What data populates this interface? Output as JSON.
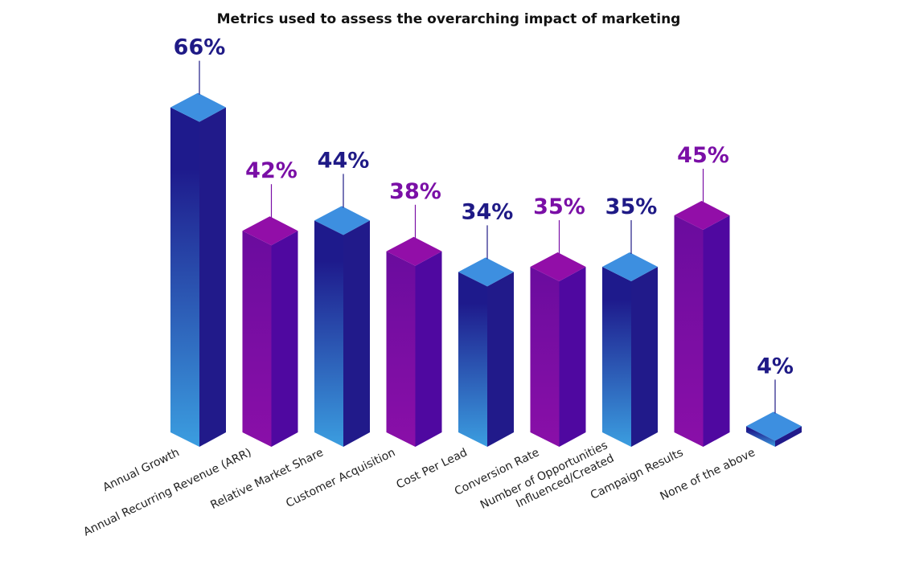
{
  "chart_data": {
    "type": "bar",
    "title": "Metrics used to assess the overarching impact of marketing",
    "xlabel": "",
    "ylabel": "",
    "ylim": [
      0,
      66
    ],
    "grid": false,
    "legend": "none",
    "value_suffix": "%",
    "categories": [
      "Annual Growth",
      "Annual Recurring Revenue (ARR)",
      "Relative Market Share",
      "Customer Acquisition",
      "Cost Per Lead",
      "Conversion Rate",
      [
        "Number of Opportunities",
        "Influenced/Created"
      ],
      "Campaign Results",
      "None of the above"
    ],
    "values": [
      66,
      42,
      44,
      38,
      34,
      35,
      35,
      45,
      4
    ],
    "value_labels": [
      "66%",
      "42%",
      "44%",
      "38%",
      "34%",
      "35%",
      "35%",
      "45%",
      "4%"
    ],
    "bar_styles": [
      "blue",
      "purple",
      "blue",
      "purple",
      "blue",
      "purple",
      "blue",
      "purple",
      "blue"
    ],
    "colors": {
      "blue_front_top": "#1e1a8c",
      "blue_front_bottom": "#3b9ee0",
      "blue_side": "#211a8a",
      "blue_top": "#3d8fe0",
      "blue_label": "#1f1a86",
      "purple_front_top": "#6a0c9e",
      "purple_front_bottom": "#8a0fa8",
      "purple_side": "#4f08a0",
      "purple_top": "#920ea8",
      "purple_label": "#7a0fa6"
    }
  }
}
